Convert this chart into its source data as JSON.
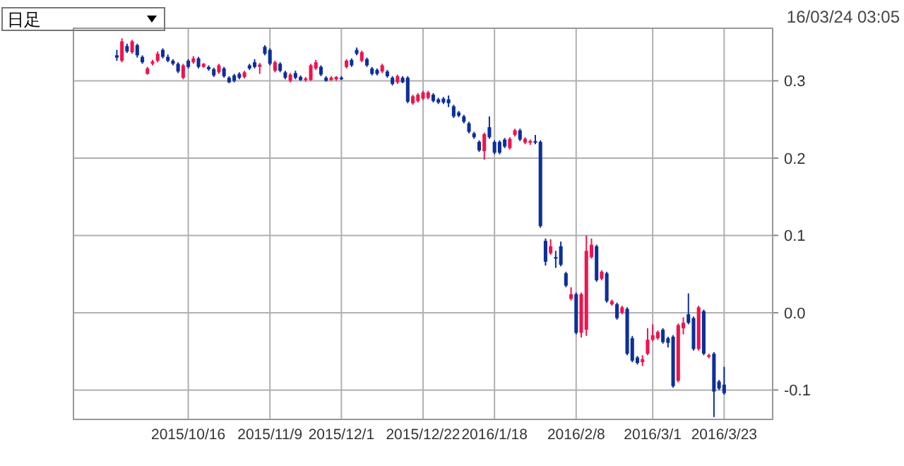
{
  "chart_data": {
    "type": "candlestick",
    "annotations": [
      "日足",
      "16/03/24 03:05"
    ],
    "categories": [
      null,
      null,
      null,
      null,
      null,
      null,
      null,
      null,
      null,
      null,
      null,
      null,
      null,
      null,
      null,
      null,
      null,
      null,
      null,
      null,
      null,
      null,
      "2015/10/16",
      null,
      null,
      null,
      null,
      null,
      null,
      null,
      null,
      null,
      null,
      null,
      null,
      null,
      null,
      null,
      "2015/11/9",
      null,
      null,
      null,
      null,
      null,
      null,
      null,
      null,
      null,
      null,
      null,
      null,
      null,
      "2015/12/1",
      null,
      null,
      null,
      null,
      null,
      null,
      null,
      null,
      null,
      null,
      null,
      null,
      null,
      null,
      null,
      "2015/12/22",
      null,
      null,
      null,
      null,
      null,
      null,
      null,
      null,
      null,
      null,
      null,
      null,
      null,
      "2016/1/18",
      null,
      null,
      null,
      null,
      null,
      null,
      null,
      null,
      null,
      null,
      null,
      null,
      null,
      null,
      null,
      "2016/2/8",
      null,
      null,
      null,
      null,
      null,
      null,
      null,
      null,
      null,
      null,
      null,
      null,
      null,
      null,
      "2016/3/1",
      null,
      null,
      null,
      null,
      null,
      null,
      null,
      null,
      null,
      null,
      null,
      null,
      null,
      "2016/3/23",
      null,
      null,
      null,
      null,
      null,
      null,
      null,
      null,
      null
    ],
    "ohlc": [
      null,
      null,
      null,
      null,
      null,
      null,
      null,
      null,
      [
        0.333,
        0.34,
        0.326,
        0.33
      ],
      [
        0.326,
        0.355,
        0.324,
        0.351
      ],
      [
        0.345,
        0.348,
        0.336,
        0.338
      ],
      [
        0.337,
        0.353,
        0.335,
        0.351
      ],
      [
        0.346,
        0.348,
        0.33,
        0.333
      ],
      [
        0.331,
        0.333,
        0.322,
        0.324
      ],
      [
        0.309,
        0.318,
        0.308,
        0.316
      ],
      [
        0.322,
        0.327,
        0.32,
        0.325
      ],
      [
        0.326,
        0.338,
        0.324,
        0.335
      ],
      [
        0.34,
        0.342,
        0.329,
        0.331
      ],
      [
        0.331,
        0.334,
        0.324,
        0.326
      ],
      [
        0.326,
        0.328,
        0.32,
        0.322
      ],
      [
        0.322,
        0.324,
        0.31,
        0.312
      ],
      [
        0.304,
        0.322,
        0.302,
        0.32
      ],
      [
        0.326,
        0.328,
        0.316,
        0.318
      ],
      [
        0.324,
        0.332,
        0.322,
        0.329
      ],
      [
        0.329,
        0.331,
        0.316,
        0.318
      ],
      [
        0.318,
        0.323,
        0.317,
        0.322
      ],
      [
        0.318,
        0.32,
        0.313,
        0.315
      ],
      [
        0.315,
        0.317,
        0.305,
        0.307
      ],
      [
        0.311,
        0.322,
        0.309,
        0.32
      ],
      [
        0.316,
        0.318,
        0.304,
        0.306
      ],
      [
        0.304,
        0.306,
        0.297,
        0.298
      ],
      [
        0.307,
        0.309,
        0.298,
        0.3
      ],
      [
        0.309,
        0.311,
        0.302,
        0.304
      ],
      [
        0.305,
        0.313,
        0.303,
        0.311
      ],
      [
        0.32,
        0.322,
        0.314,
        0.316
      ],
      [
        0.324,
        0.328,
        0.316,
        0.318
      ],
      [
        0.318,
        0.323,
        0.309,
        0.321
      ],
      [
        0.344,
        0.346,
        0.333,
        0.335
      ],
      [
        0.34,
        0.342,
        0.32,
        0.322
      ],
      [
        0.313,
        0.326,
        0.311,
        0.324
      ],
      [
        0.322,
        0.324,
        0.311,
        0.313
      ],
      [
        0.311,
        0.313,
        0.302,
        0.304
      ],
      [
        0.3,
        0.31,
        0.298,
        0.308
      ],
      [
        0.31,
        0.313,
        0.302,
        0.304
      ],
      [
        0.305,
        0.307,
        0.3,
        0.301
      ],
      [
        0.301,
        0.305,
        0.299,
        0.303
      ],
      [
        0.301,
        0.322,
        0.3,
        0.32
      ],
      [
        0.316,
        0.327,
        0.314,
        0.324
      ],
      [
        0.318,
        0.32,
        0.306,
        0.308
      ],
      [
        0.304,
        0.306,
        0.299,
        0.3
      ],
      [
        0.301,
        0.306,
        0.3,
        0.304
      ],
      [
        0.302,
        0.306,
        0.3,
        0.305
      ],
      [
        0.304,
        0.306,
        0.301,
        0.302
      ],
      [
        0.318,
        0.328,
        0.316,
        0.326
      ],
      [
        0.327,
        0.329,
        0.318,
        0.32
      ],
      [
        0.34,
        0.343,
        0.333,
        0.335
      ],
      [
        0.326,
        0.339,
        0.324,
        0.337
      ],
      [
        0.328,
        0.33,
        0.318,
        0.32
      ],
      [
        0.316,
        0.318,
        0.307,
        0.309
      ],
      [
        0.314,
        0.316,
        0.307,
        0.309
      ],
      [
        0.312,
        0.322,
        0.31,
        0.32
      ],
      [
        0.312,
        0.314,
        0.304,
        0.306
      ],
      [
        0.304,
        0.306,
        0.294,
        0.296
      ],
      [
        0.298,
        0.308,
        0.296,
        0.306
      ],
      [
        0.304,
        0.306,
        0.297,
        0.298
      ],
      [
        0.304,
        0.306,
        0.271,
        0.273
      ],
      [
        0.271,
        0.282,
        0.269,
        0.28
      ],
      [
        0.274,
        0.284,
        0.272,
        0.282
      ],
      [
        0.277,
        0.287,
        0.275,
        0.285
      ],
      [
        0.278,
        0.287,
        0.276,
        0.285
      ],
      [
        0.282,
        0.284,
        0.272,
        0.274
      ],
      [
        0.276,
        0.278,
        0.27,
        0.272
      ],
      [
        0.277,
        0.279,
        0.27,
        0.272
      ],
      [
        0.276,
        0.281,
        0.266,
        0.271
      ],
      [
        0.267,
        0.269,
        0.252,
        0.254
      ],
      [
        0.259,
        0.261,
        0.253,
        0.255
      ],
      [
        0.254,
        0.256,
        0.245,
        0.247
      ],
      [
        0.245,
        0.247,
        0.232,
        0.234
      ],
      [
        0.232,
        0.234,
        0.225,
        0.227
      ],
      [
        0.221,
        0.223,
        0.208,
        0.21
      ],
      [
        0.209,
        0.233,
        0.198,
        0.231
      ],
      [
        0.24,
        0.254,
        0.225,
        0.227
      ],
      [
        0.221,
        0.223,
        0.205,
        0.207
      ],
      [
        0.221,
        0.223,
        0.205,
        0.207
      ],
      [
        0.224,
        0.226,
        0.213,
        0.215
      ],
      [
        0.213,
        0.227,
        0.211,
        0.225
      ],
      [
        0.23,
        0.238,
        0.228,
        0.236
      ],
      [
        0.236,
        0.238,
        0.222,
        0.224
      ],
      [
        0.22,
        0.227,
        0.218,
        0.225
      ],
      [
        0.22,
        0.224,
        0.217,
        0.222
      ],
      [
        0.222,
        0.23,
        0.218,
        0.22
      ],
      [
        0.221,
        0.223,
        0.11,
        0.112
      ],
      [
        0.093,
        0.096,
        0.061,
        0.066
      ],
      [
        0.077,
        0.095,
        0.075,
        0.086
      ],
      [
        0.072,
        0.08,
        0.058,
        0.07
      ],
      [
        0.086,
        0.092,
        0.06,
        0.062
      ],
      [
        0.051,
        0.053,
        0.033,
        0.035
      ],
      [
        0.018,
        0.033,
        0.016,
        0.024
      ],
      [
        0.024,
        0.026,
        -0.028,
        -0.026
      ],
      [
        -0.026,
        0.026,
        -0.032,
        0.024
      ],
      [
        -0.022,
        0.1,
        -0.03,
        0.08
      ],
      [
        0.072,
        0.096,
        0.07,
        0.088
      ],
      [
        0.086,
        0.088,
        0.04,
        0.042
      ],
      [
        0.044,
        0.055,
        0.042,
        0.053
      ],
      [
        0.051,
        0.053,
        0.013,
        0.015
      ],
      [
        0.011,
        0.017,
        0.009,
        0.015
      ],
      [
        0.011,
        0.013,
        -0.009,
        -0.007
      ],
      [
        0.0,
        0.009,
        -0.002,
        0.007
      ],
      [
        0.005,
        0.007,
        -0.055,
        -0.053
      ],
      [
        -0.033,
        -0.03,
        -0.064,
        -0.062
      ],
      [
        -0.058,
        -0.056,
        -0.067,
        -0.065
      ],
      [
        -0.064,
        -0.055,
        -0.069,
        -0.06
      ],
      [
        -0.053,
        -0.02,
        -0.055,
        -0.035
      ],
      [
        -0.035,
        -0.015,
        -0.037,
        -0.029
      ],
      [
        -0.033,
        -0.023,
        -0.035,
        -0.025
      ],
      [
        -0.022,
        -0.02,
        -0.04,
        -0.038
      ],
      [
        -0.033,
        -0.031,
        -0.045,
        -0.039
      ],
      [
        -0.031,
        -0.029,
        -0.097,
        -0.095
      ],
      [
        -0.088,
        -0.014,
        -0.09,
        -0.016
      ],
      [
        -0.02,
        -0.006,
        -0.028,
        -0.013
      ],
      [
        -0.002,
        0.025,
        -0.015,
        -0.013
      ],
      [
        -0.007,
        -0.005,
        -0.049,
        -0.047
      ],
      [
        -0.047,
        0.009,
        -0.049,
        0.007
      ],
      [
        0.002,
        0.004,
        -0.055,
        -0.053
      ],
      [
        -0.057,
        -0.053,
        -0.059,
        -0.055
      ],
      [
        -0.053,
        -0.051,
        -0.135,
        -0.102
      ],
      [
        -0.089,
        -0.087,
        -0.1,
        -0.098
      ],
      [
        -0.093,
        -0.07,
        -0.106,
        -0.104
      ],
      null,
      null,
      null,
      null,
      null,
      null,
      null,
      null,
      null
    ],
    "ylim": [
      -0.138,
      0.368
    ],
    "yticks": [
      0.3,
      0.2,
      0.1,
      {
        "value": 0,
        "label": "0.0"
      },
      -0.1
    ],
    "grid": true,
    "colors": [
      null,
      null,
      null,
      null,
      null,
      null,
      null,
      null,
      "#0c2f9a",
      "#f0134d",
      "#0c2f9a",
      "#f0134d",
      "#0c2f9a",
      "#0c2f9a",
      "#f0134d",
      "#f0134d",
      "#f0134d",
      "#0c2f9a",
      "#0c2f9a",
      "#0c2f9a",
      "#0c2f9a",
      "#f0134d",
      "#0c2f9a",
      "#f0134d",
      "#0c2f9a",
      "#f0134d",
      "#0c2f9a",
      "#0c2f9a",
      "#f0134d",
      "#0c2f9a",
      "#0c2f9a",
      "#0c2f9a",
      "#0c2f9a",
      "#f0134d",
      "#0c2f9a",
      "#0c2f9a",
      "#f0134d",
      "#0c2f9a",
      "#0c2f9a",
      "#f0134d",
      "#0c2f9a",
      "#0c2f9a",
      "#f0134d",
      "#0c2f9a",
      "#0c2f9a",
      "#f0134d",
      "#f0134d",
      "#f0134d",
      "#0c2f9a",
      "#0c2f9a",
      "#f0134d",
      "#f0134d",
      "#0c2f9a",
      "#f0134d",
      "#0c2f9a",
      "#0c2f9a",
      "#f0134d",
      "#0c2f9a",
      "#0c2f9a",
      "#0c2f9a",
      "#f0134d",
      "#0c2f9a",
      "#0c2f9a",
      "#f0134d",
      "#0c2f9a",
      "#0c2f9a",
      "#f0134d",
      "#f0134d",
      "#f0134d",
      "#f0134d",
      "#0c2f9a",
      "#0c2f9a",
      "#0c2f9a",
      "#0c2f9a",
      "#0c2f9a",
      "#0c2f9a",
      "#0c2f9a",
      "#0c2f9a",
      "#0c2f9a",
      "#0c2f9a",
      "#f0134d",
      "#0c2f9a",
      "#0c2f9a",
      "#0c2f9a",
      "#0c2f9a",
      "#f0134d",
      "#f0134d",
      "#0c2f9a",
      "#f0134d",
      "#f0134d",
      "#0c2f9a",
      "#0c2f9a",
      "#0c2f9a",
      "#f0134d",
      "#0c2f9a",
      "#0c2f9a",
      "#0c2f9a",
      "#f0134d",
      "#0c2f9a",
      "#f0134d",
      "#f0134d",
      "#f0134d",
      "#0c2f9a",
      "#f0134d",
      "#0c2f9a",
      "#f0134d",
      "#0c2f9a",
      "#f0134d",
      "#0c2f9a",
      "#0c2f9a",
      "#0c2f9a",
      "#f0134d",
      "#f0134d",
      "#f0134d",
      "#f0134d",
      "#0c2f9a",
      "#0c2f9a",
      "#0c2f9a",
      "#f0134d",
      "#f0134d",
      "#0c2f9a",
      "#0c2f9a",
      "#f0134d",
      "#0c2f9a",
      "#f0134d",
      "#0c2f9a",
      "#0c2f9a",
      "#0c2f9a",
      null,
      null,
      null,
      null,
      null,
      null,
      null,
      null,
      null
    ]
  }
}
